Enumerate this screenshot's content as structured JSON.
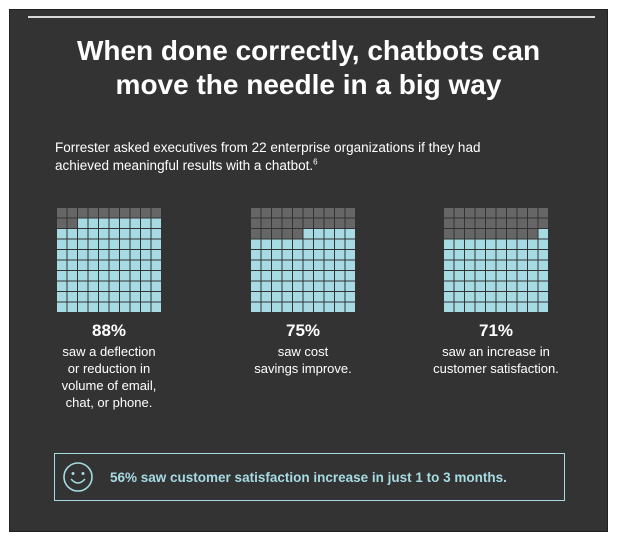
{
  "title": {
    "line1": "When done correctly, chatbots can",
    "line2": "move the needle in a big way"
  },
  "intro": {
    "line1": "Forrester asked executives from 22 enterprise organizations if they had",
    "line2": "achieved meaningful results with a chatbot.",
    "footnote": "6"
  },
  "colors": {
    "filled": "#a6dbe3",
    "empty": "#666666",
    "background": "#333333",
    "accent": "#a6dbe3"
  },
  "chart_data": {
    "type": "waffle",
    "grid": {
      "rows": 10,
      "cols": 10
    },
    "items": [
      {
        "value": 88,
        "label": "88%",
        "desc": [
          "saw a deflection",
          "or reduction in",
          "volume of email,",
          "chat, or phone."
        ]
      },
      {
        "value": 75,
        "label": "75%",
        "desc": [
          "saw cost",
          "savings improve."
        ]
      },
      {
        "value": 71,
        "label": "71%",
        "desc": [
          "saw an increase in",
          "customer satisfaction."
        ]
      }
    ]
  },
  "callout": {
    "icon": "smiley-icon",
    "text": "56% saw customer satisfaction increase in just 1 to 3 months."
  }
}
